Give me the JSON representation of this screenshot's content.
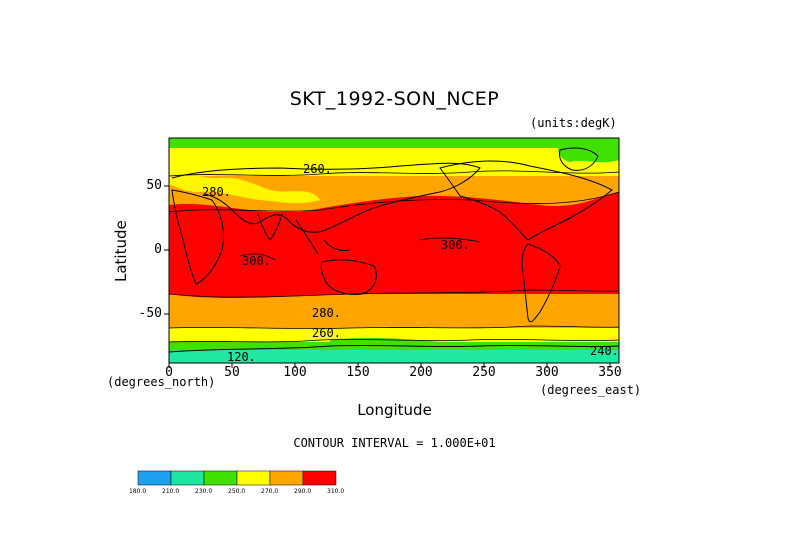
{
  "title": "SKT_1992-SON_NCEP",
  "units": "(units:degK)",
  "y_axis": {
    "label": "Latitude",
    "units": "(degrees_north)",
    "ticks": [
      "50",
      "0",
      "-50"
    ]
  },
  "x_axis": {
    "label": "Longitude",
    "units": "(degrees_east)",
    "ticks": [
      "0",
      "50",
      "100",
      "150",
      "200",
      "250",
      "300",
      "350"
    ]
  },
  "contour_interval": "CONTOUR INTERVAL = 1.000E+01",
  "contour_labels": [
    "260.",
    "280.",
    "300.",
    "300.",
    "280.",
    "260.",
    "120.",
    "240."
  ],
  "colorbar": {
    "labels": [
      "180.0",
      "210.0",
      "230.0",
      "250.0",
      "270.0",
      "290.0",
      "310.0"
    ],
    "colors": [
      "#1ea0f0",
      "#1ee6a0",
      "#20d880",
      "#40e000",
      "#ffff00",
      "#ffa500",
      "#ff0000"
    ]
  },
  "colors": {
    "tropical": "#ff0000",
    "temperate": "#ffa500",
    "cool": "#ffff00",
    "cold": "#40e000",
    "polar": "#20e8a0"
  }
}
